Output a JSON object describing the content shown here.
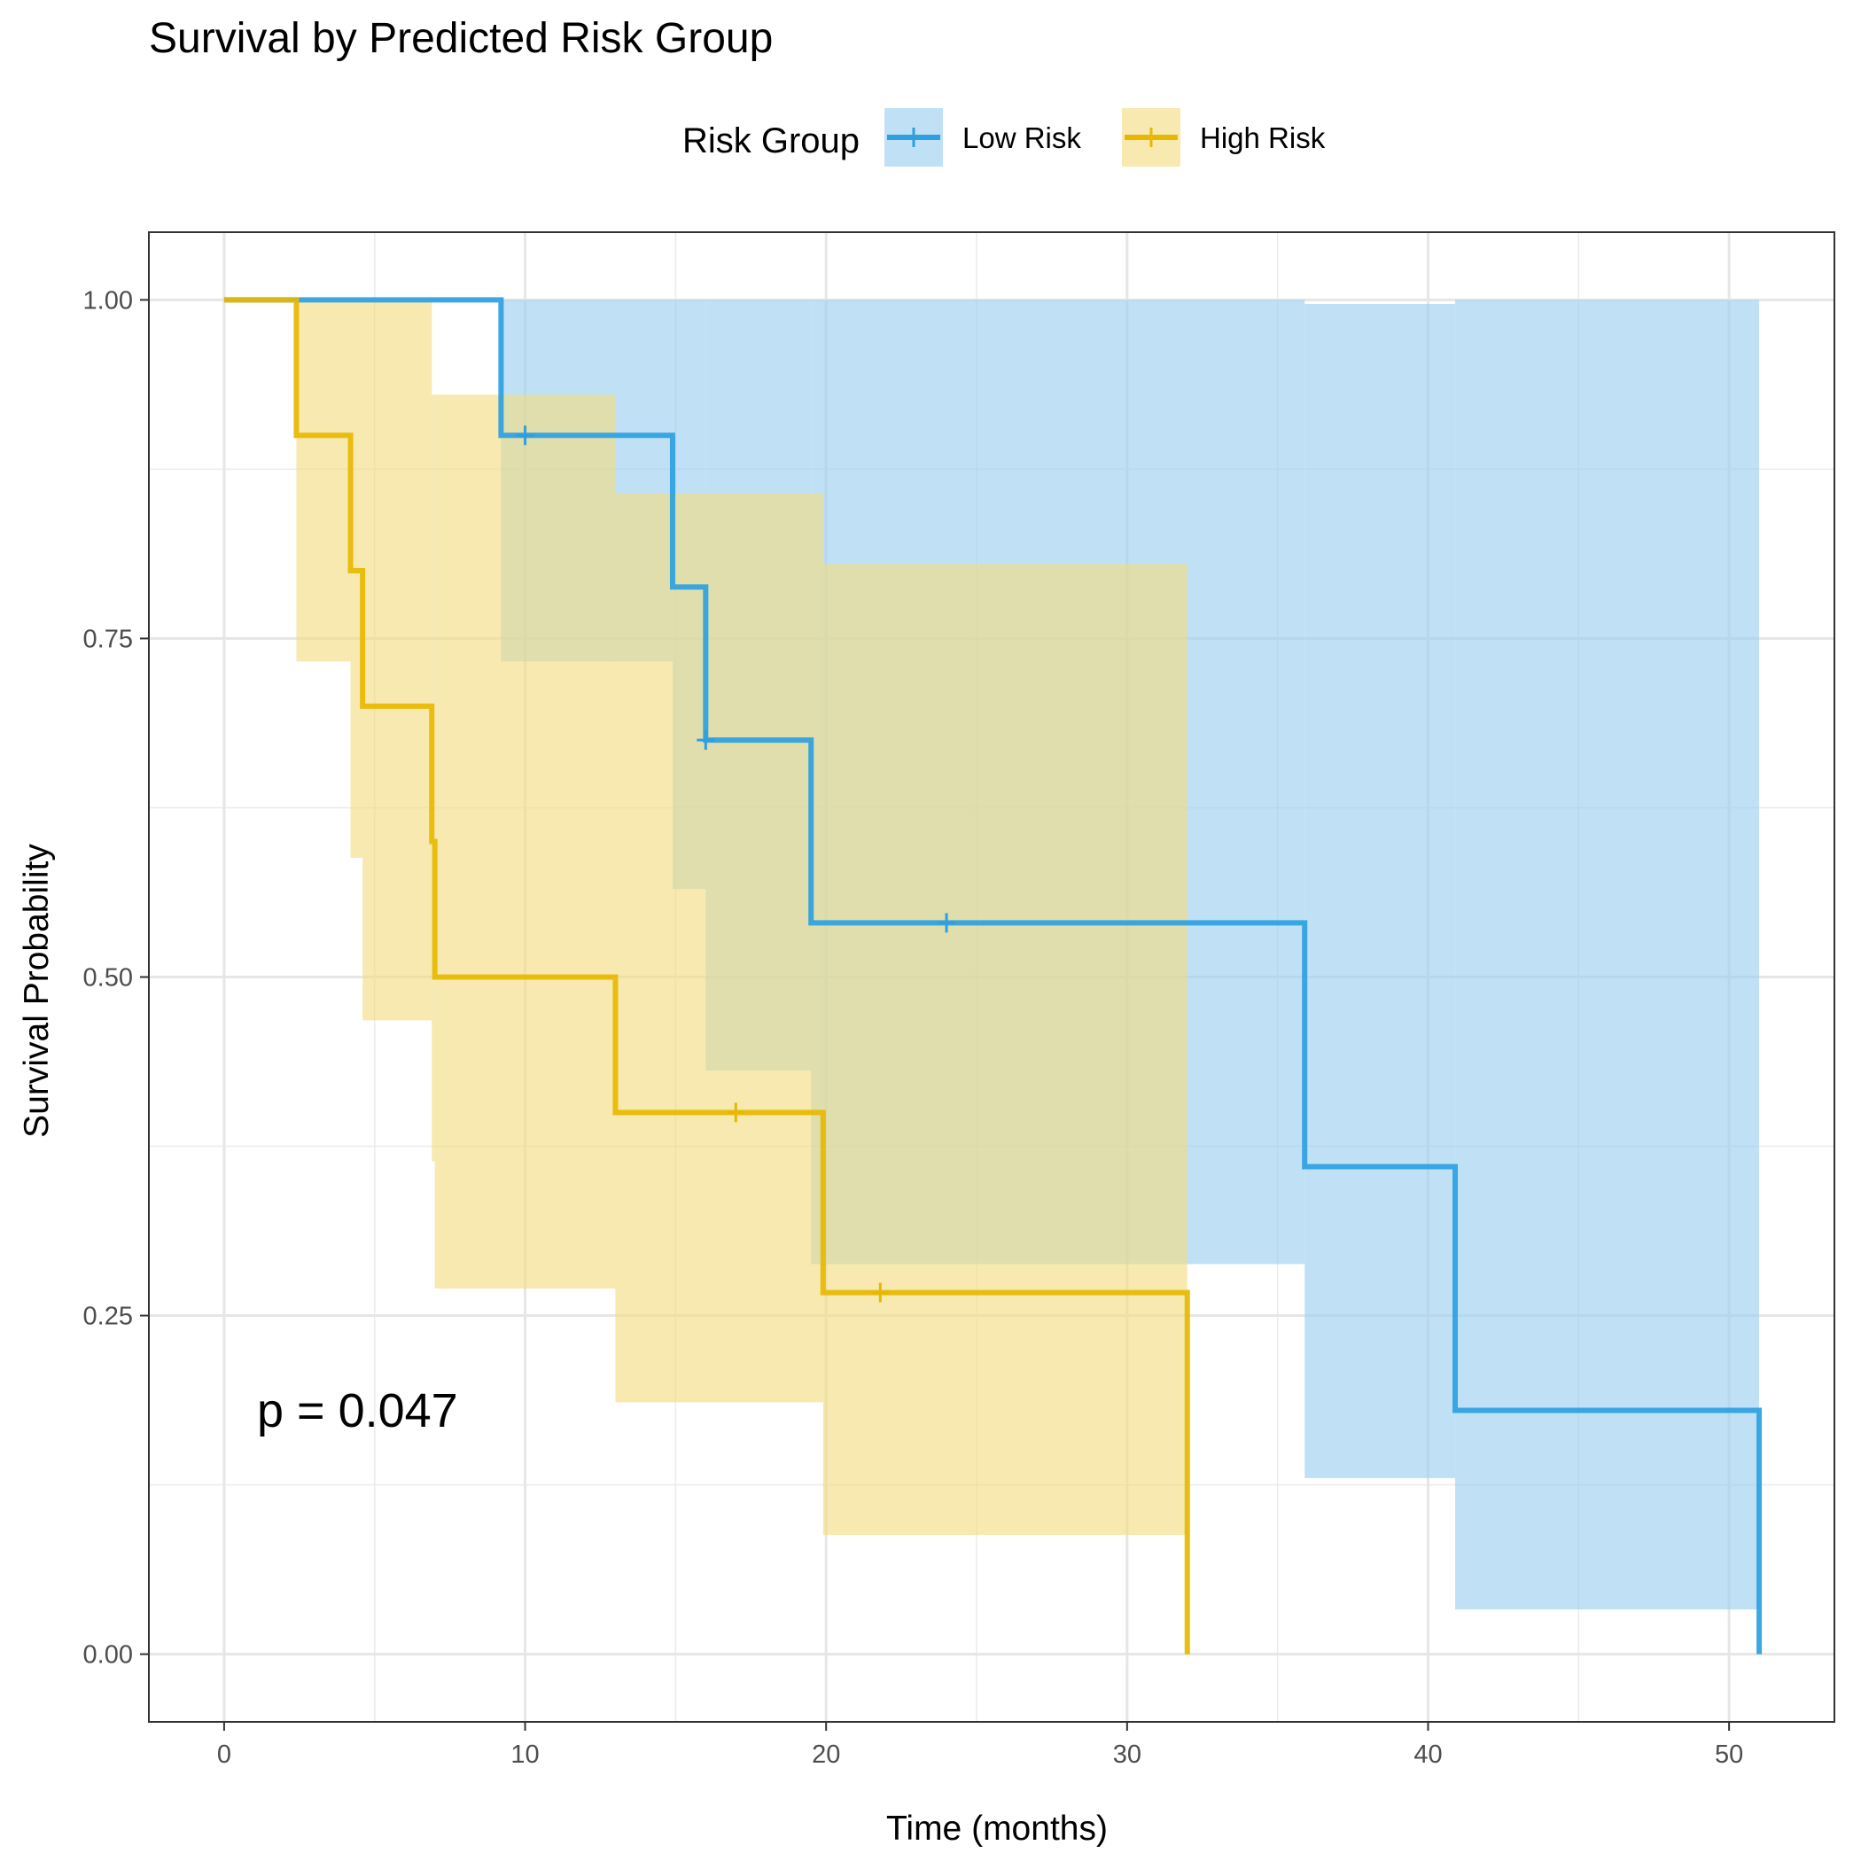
{
  "chart_data": {
    "type": "line",
    "subtype": "kaplan-meier step curve with confidence bands",
    "title": "Survival by Predicted Risk Group",
    "xlabel": "Time (months)",
    "ylabel": "Survival Probability",
    "xlim": [
      -2.5,
      53.5
    ],
    "ylim": [
      -0.05,
      1.05
    ],
    "x_ticks": [
      0,
      10,
      20,
      30,
      40,
      50
    ],
    "x_tick_labels": [
      "0",
      "10",
      "20",
      "30",
      "40",
      "50"
    ],
    "y_ticks": [
      0,
      0.25,
      0.5,
      0.75,
      1.0
    ],
    "y_tick_labels": [
      "0.00",
      "0.25",
      "0.50",
      "0.75",
      "1.00"
    ],
    "grid": true,
    "legend": {
      "title": "Risk Group",
      "position": "top"
    },
    "annotation": "p = 0.047",
    "series": [
      {
        "name": "Low Risk",
        "color": "#2E9FDF",
        "band_color": "#9ACFEF",
        "steps": [
          {
            "x0": 0,
            "x1": 9.2,
            "surv": 1.0,
            "lower": 1.0,
            "upper": 1.0
          },
          {
            "x0": 9.2,
            "x1": 14.9,
            "surv": 0.9,
            "lower": 0.733,
            "upper": 1.0
          },
          {
            "x0": 14.9,
            "x1": 16.0,
            "surv": 0.788,
            "lower": 0.565,
            "upper": 1.0
          },
          {
            "x0": 16.0,
            "x1": 19.5,
            "surv": 0.675,
            "lower": 0.431,
            "upper": 1.0
          },
          {
            "x0": 19.5,
            "x1": 35.9,
            "surv": 0.54,
            "lower": 0.288,
            "upper": 1.0
          },
          {
            "x0": 35.9,
            "x1": 40.9,
            "surv": 0.36,
            "lower": 0.13,
            "upper": 0.997
          },
          {
            "x0": 40.9,
            "x1": 51.0,
            "surv": 0.18,
            "lower": 0.033,
            "upper": 1.0
          },
          {
            "x0": 51.0,
            "x1": 51.0,
            "surv": 0.0,
            "lower": null,
            "upper": null
          }
        ],
        "censor_marks": [
          {
            "x": 10.0,
            "surv": 0.9
          },
          {
            "x": 16.0,
            "surv": 0.675
          },
          {
            "x": 24.0,
            "surv": 0.54
          }
        ]
      },
      {
        "name": "High Risk",
        "color": "#E7B800",
        "band_color": "#F2DC80",
        "steps": [
          {
            "x0": 0,
            "x1": 2.4,
            "surv": 1.0,
            "lower": 1.0,
            "upper": 1.0
          },
          {
            "x0": 2.4,
            "x1": 4.2,
            "surv": 0.9,
            "lower": 0.733,
            "upper": 1.0
          },
          {
            "x0": 4.2,
            "x1": 4.6,
            "surv": 0.8,
            "lower": 0.588,
            "upper": 1.0
          },
          {
            "x0": 4.6,
            "x1": 6.9,
            "surv": 0.7,
            "lower": 0.468,
            "upper": 1.0
          },
          {
            "x0": 6.9,
            "x1": 7.0,
            "surv": 0.6,
            "lower": 0.364,
            "upper": 0.93
          },
          {
            "x0": 7.0,
            "x1": 13.0,
            "surv": 0.5,
            "lower": 0.27,
            "upper": 0.93
          },
          {
            "x0": 13.0,
            "x1": 19.9,
            "surv": 0.4,
            "lower": 0.186,
            "upper": 0.857
          },
          {
            "x0": 19.9,
            "x1": 32.0,
            "surv": 0.267,
            "lower": 0.088,
            "upper": 0.805
          },
          {
            "x0": 32.0,
            "x1": 32.0,
            "surv": 0.0,
            "lower": null,
            "upper": null
          }
        ],
        "censor_marks": [
          {
            "x": 17.0,
            "surv": 0.4
          },
          {
            "x": 21.8,
            "surv": 0.267
          }
        ]
      }
    ]
  }
}
